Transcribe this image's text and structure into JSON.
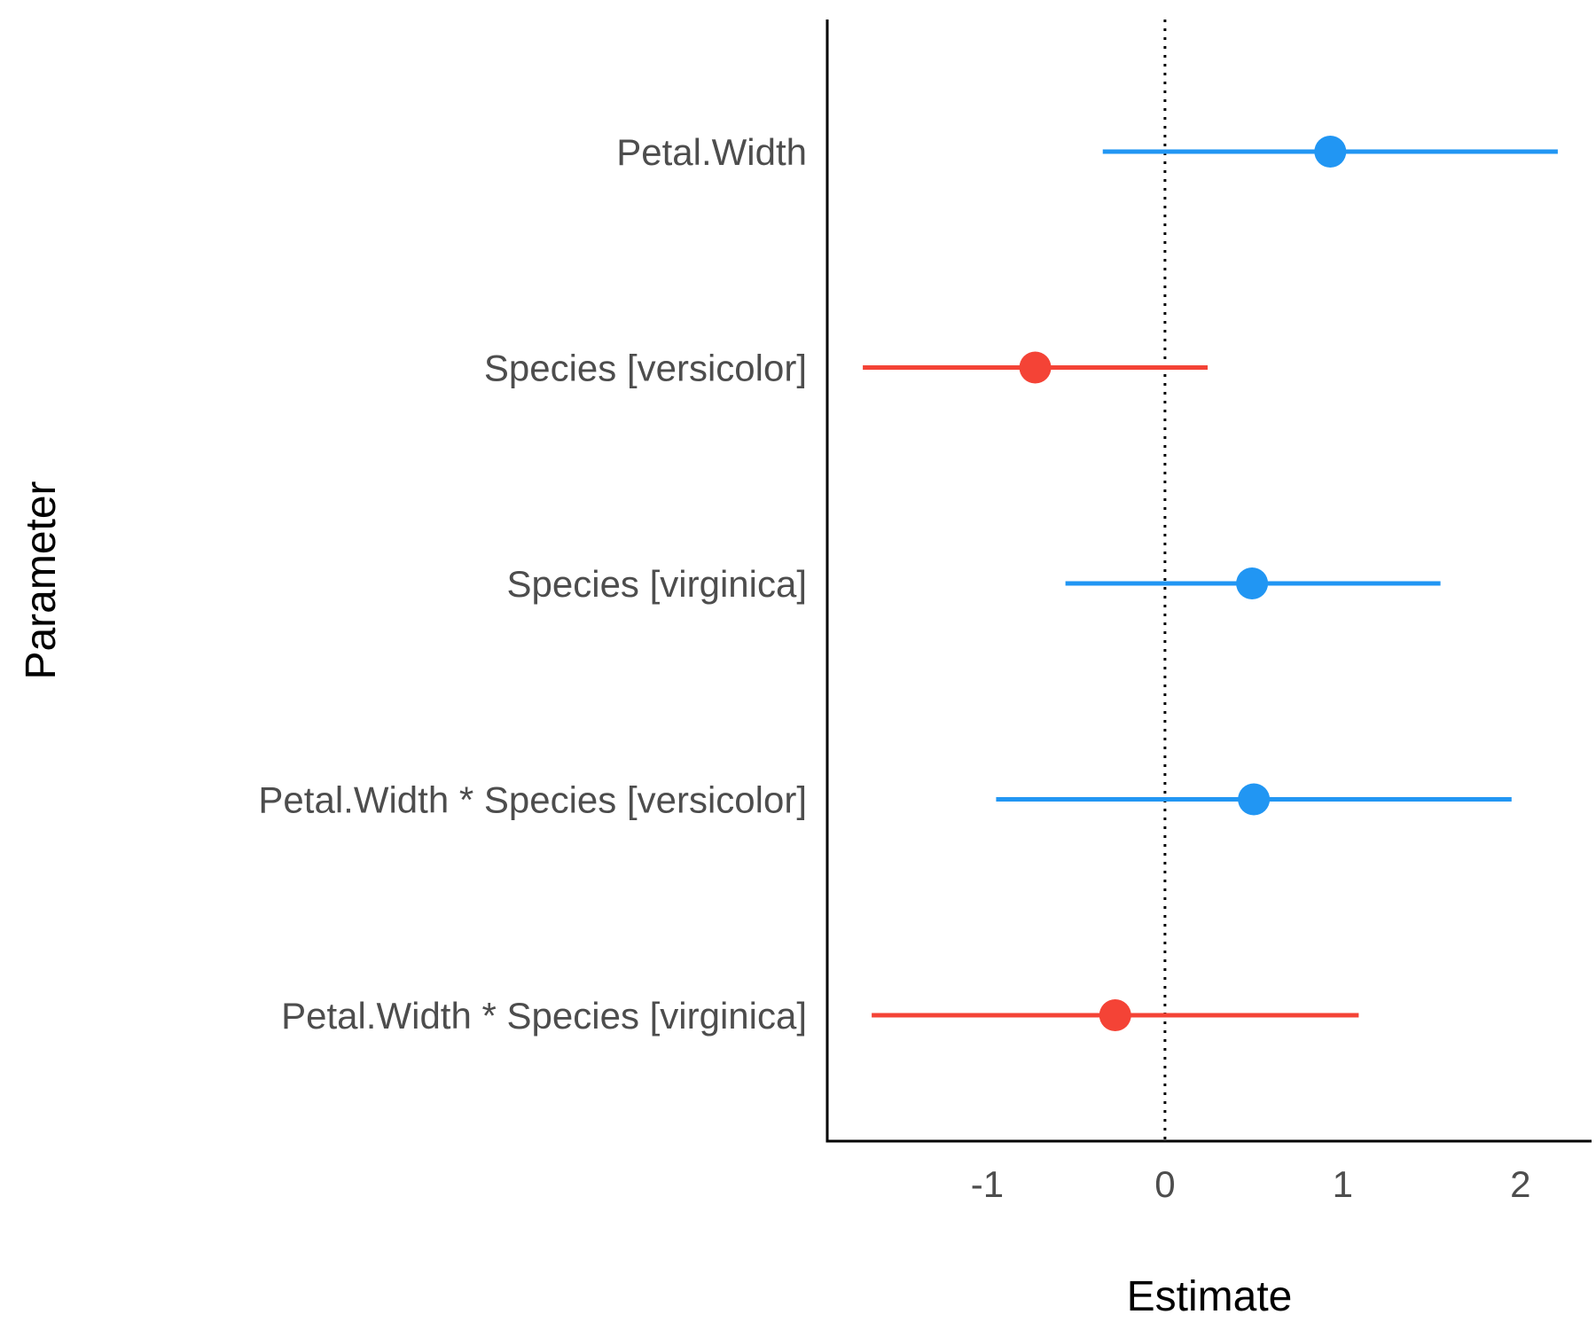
{
  "chart_data": {
    "type": "scatter",
    "subtype": "coefficient-forest-plot",
    "title": "",
    "xlabel": "Estimate",
    "ylabel": "Parameter",
    "xlim": [
      -1.9,
      2.4
    ],
    "x_ticks": [
      -1,
      0,
      1,
      2
    ],
    "x_tick_labels": [
      "-1",
      "0",
      "1",
      "2"
    ],
    "reference_line": {
      "x": 0,
      "style": "dotted"
    },
    "grid": false,
    "legend": "none",
    "colors": {
      "positive": "#2196f3",
      "negative": "#f44336",
      "axis": "#000000",
      "tick_text": "#4d4d4d"
    },
    "parameters": [
      {
        "name": "Petal.Width",
        "estimate": 0.93,
        "ci_low": -0.35,
        "ci_high": 2.21,
        "sign": "positive"
      },
      {
        "name": "Species [versicolor]",
        "estimate": -0.73,
        "ci_low": -1.7,
        "ci_high": 0.24,
        "sign": "negative"
      },
      {
        "name": "Species [virginica]",
        "estimate": 0.49,
        "ci_low": -0.56,
        "ci_high": 1.55,
        "sign": "positive"
      },
      {
        "name": "Petal.Width * Species [versicolor]",
        "estimate": 0.5,
        "ci_low": -0.95,
        "ci_high": 1.95,
        "sign": "positive"
      },
      {
        "name": "Petal.Width * Species [virginica]",
        "estimate": -0.28,
        "ci_low": -1.65,
        "ci_high": 1.09,
        "sign": "negative"
      }
    ]
  }
}
